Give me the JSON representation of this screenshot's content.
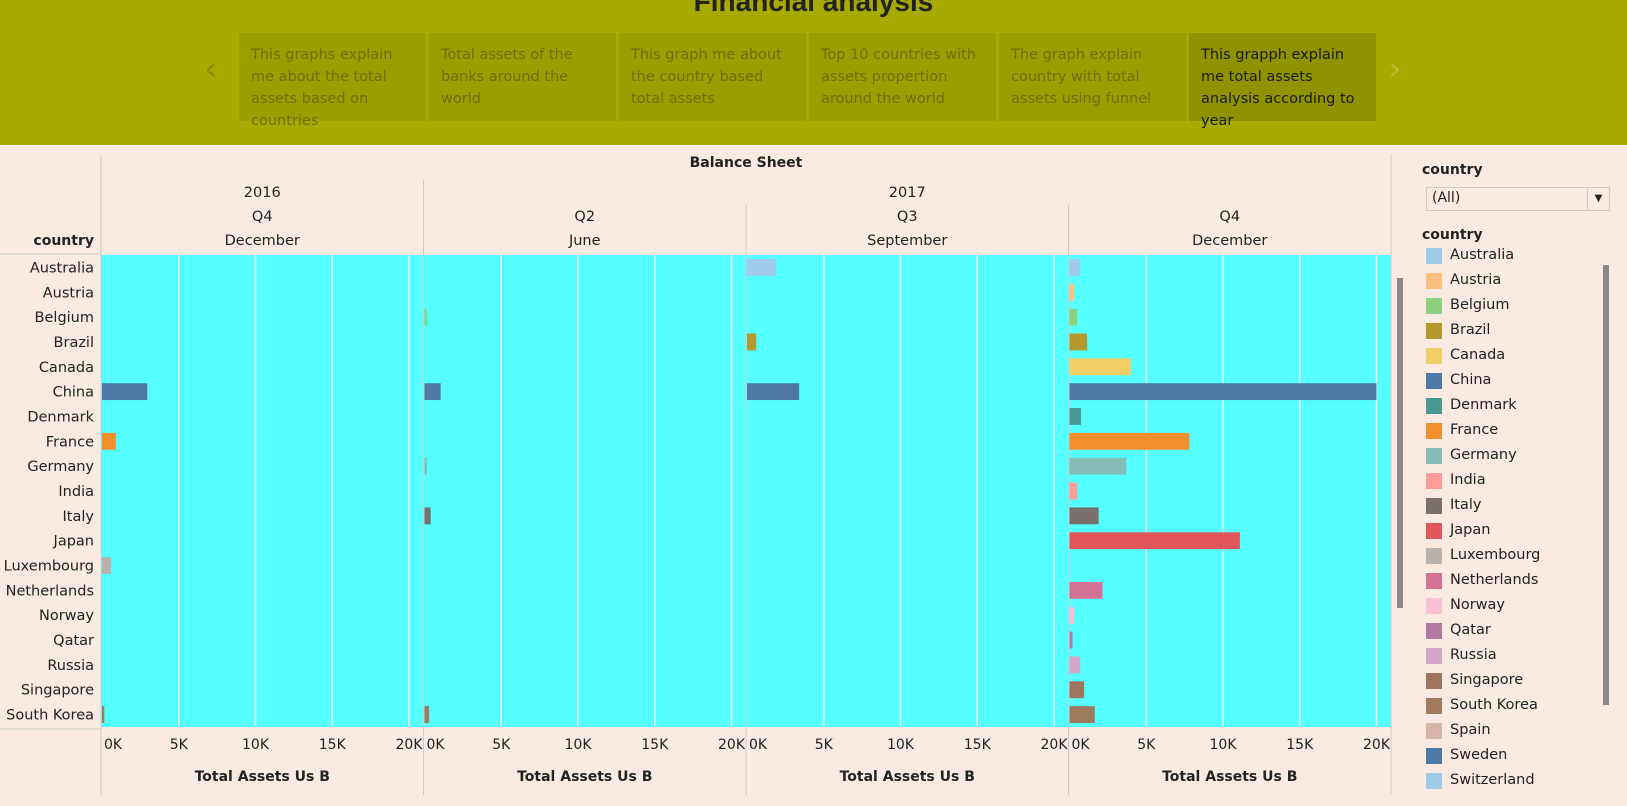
{
  "story": {
    "title": "Financial analysis",
    "prev_icon": "chevron-left-icon",
    "next_icon": "chevron-right-icon",
    "points": [
      {
        "text": "This graphs explain me about the total assets based on countries",
        "active": false
      },
      {
        "text": "Total assets of the banks around the world",
        "active": false
      },
      {
        "text": "This graph me about the country based total assets",
        "active": false
      },
      {
        "text": "Top 10 countries with assets propertion around the world",
        "active": false
      },
      {
        "text": "The graph explain country with total assets using funnel",
        "active": false
      },
      {
        "text": "This grapph explain me total assets analysis according to year",
        "active": true
      }
    ]
  },
  "filter": {
    "title": "country",
    "value": "(All)"
  },
  "legend": {
    "title": "country",
    "items": [
      {
        "name": "Australia",
        "color": "#a0cbe8"
      },
      {
        "name": "Austria",
        "color": "#ffbe7d"
      },
      {
        "name": "Belgium",
        "color": "#8cd17d"
      },
      {
        "name": "Brazil",
        "color": "#b6992d"
      },
      {
        "name": "Canada",
        "color": "#f1ce63"
      },
      {
        "name": "China",
        "color": "#4e79a7"
      },
      {
        "name": "Denmark",
        "color": "#499894"
      },
      {
        "name": "France",
        "color": "#f28e2b"
      },
      {
        "name": "Germany",
        "color": "#86bcb6"
      },
      {
        "name": "India",
        "color": "#ff9d9a"
      },
      {
        "name": "Italy",
        "color": "#79706e"
      },
      {
        "name": "Japan",
        "color": "#e15759"
      },
      {
        "name": "Luxembourg",
        "color": "#bab0ac"
      },
      {
        "name": "Netherlands",
        "color": "#d37295"
      },
      {
        "name": "Norway",
        "color": "#fabfd2"
      },
      {
        "name": "Qatar",
        "color": "#b07aa1"
      },
      {
        "name": "Russia",
        "color": "#d4a6c8"
      },
      {
        "name": "Singapore",
        "color": "#9d7660"
      },
      {
        "name": "South Korea",
        "color": "#a07a5f"
      },
      {
        "name": "Spain",
        "color": "#d7b5a6"
      },
      {
        "name": "Sweden",
        "color": "#4e79a7"
      },
      {
        "name": "Switzerland",
        "color": "#a0cbe8"
      }
    ]
  },
  "chart_data": {
    "type": "bar",
    "orientation": "horizontal",
    "title": "Balance Sheet",
    "row_header": "country",
    "xlabel": "Total Assets Us B",
    "xlim": [
      0,
      20000
    ],
    "x_ticks": [
      "0K",
      "5K",
      "10K",
      "15K",
      "20K"
    ],
    "background_color": "#55ffff",
    "grid": true,
    "categories": [
      "Australia",
      "Austria",
      "Belgium",
      "Brazil",
      "Canada",
      "China",
      "Denmark",
      "France",
      "Germany",
      "India",
      "Italy",
      "Japan",
      "Luxembourg",
      "Netherlands",
      "Norway",
      "Qatar",
      "Russia",
      "Singapore",
      "South Korea"
    ],
    "colors": [
      "#a0cbe8",
      "#ffbe7d",
      "#8cd17d",
      "#b6992d",
      "#f1ce63",
      "#4e79a7",
      "#499894",
      "#f28e2b",
      "#86bcb6",
      "#ff9d9a",
      "#79706e",
      "#e15759",
      "#bab0ac",
      "#d37295",
      "#fabfd2",
      "#b07aa1",
      "#d4a6c8",
      "#9d7660",
      "#a07a5f"
    ],
    "years": [
      {
        "label": "2016",
        "panels": 1
      },
      {
        "label": "2017",
        "panels": 3
      }
    ],
    "panels": [
      {
        "quarter": "Q4",
        "month": "December",
        "values": [
          0,
          0,
          0,
          0,
          0,
          2950,
          0,
          900,
          0,
          0,
          0,
          0,
          600,
          0,
          0,
          0,
          0,
          0,
          150
        ]
      },
      {
        "quarter": "Q2",
        "month": "June",
        "values": [
          0,
          0,
          150,
          0,
          0,
          1050,
          0,
          0,
          150,
          0,
          400,
          0,
          0,
          0,
          0,
          0,
          0,
          0,
          300
        ]
      },
      {
        "quarter": "Q3",
        "month": "September",
        "values": [
          1900,
          0,
          0,
          600,
          0,
          3400,
          0,
          0,
          0,
          0,
          0,
          0,
          0,
          0,
          0,
          0,
          0,
          0,
          0
        ]
      },
      {
        "quarter": "Q4",
        "month": "December",
        "values": [
          700,
          300,
          500,
          1150,
          4000,
          20000,
          750,
          7800,
          3700,
          500,
          1900,
          11100,
          0,
          2150,
          300,
          200,
          700,
          950,
          1650
        ]
      }
    ]
  }
}
